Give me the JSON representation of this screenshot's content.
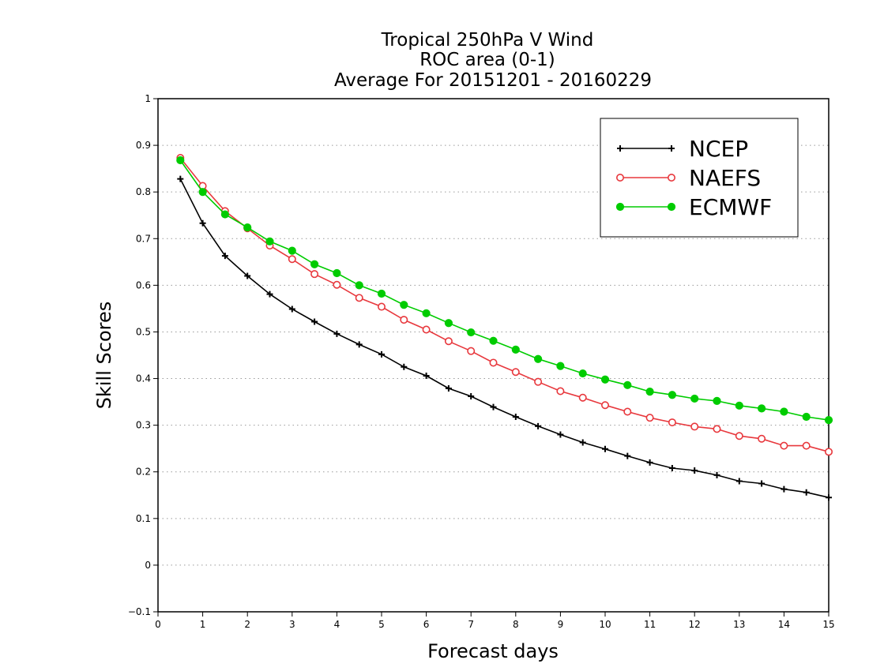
{
  "chart_data": {
    "type": "line",
    "title_lines": [
      "Tropical 250hPa V Wind",
      "ROC area (0-1)",
      "Average For 20151201 - 20160229"
    ],
    "xlabel": "Forecast days",
    "ylabel": "Skill Scores",
    "xlim": [
      0,
      15
    ],
    "ylim": [
      -0.1,
      1
    ],
    "xticks": [
      0,
      1,
      2,
      3,
      4,
      5,
      6,
      7,
      8,
      9,
      10,
      11,
      12,
      13,
      14,
      15
    ],
    "yticks": [
      -0.1,
      0,
      0.1,
      0.2,
      0.3,
      0.4,
      0.5,
      0.6,
      0.7,
      0.8,
      0.9,
      1
    ],
    "grid": "dotted horizontal",
    "legend_position": "top-right",
    "x": [
      0.5,
      1,
      1.5,
      2,
      2.5,
      3,
      3.5,
      4,
      4.5,
      5,
      5.5,
      6,
      6.5,
      7,
      7.5,
      8,
      8.5,
      9,
      9.5,
      10,
      10.5,
      11,
      11.5,
      12,
      12.5,
      13,
      13.5,
      14,
      14.5,
      15
    ],
    "series": [
      {
        "name": "NCEP",
        "color": "#000000",
        "marker": "plus",
        "values": [
          0.828,
          0.733,
          0.663,
          0.62,
          0.581,
          0.549,
          0.522,
          0.496,
          0.473,
          0.452,
          0.425,
          0.406,
          0.379,
          0.362,
          0.339,
          0.318,
          0.298,
          0.28,
          0.263,
          0.249,
          0.234,
          0.22,
          0.208,
          0.203,
          0.193,
          0.18,
          0.175,
          0.163,
          0.156,
          0.145
        ]
      },
      {
        "name": "NAEFS",
        "color": "#e8383d",
        "marker": "open-circle",
        "values": [
          0.873,
          0.813,
          0.759,
          0.722,
          0.685,
          0.656,
          0.624,
          0.601,
          0.573,
          0.554,
          0.526,
          0.505,
          0.48,
          0.459,
          0.434,
          0.414,
          0.393,
          0.373,
          0.359,
          0.343,
          0.329,
          0.316,
          0.306,
          0.297,
          0.292,
          0.277,
          0.271,
          0.256,
          0.256,
          0.243
        ]
      },
      {
        "name": "ECMWF",
        "color": "#00cc00",
        "marker": "filled-circle",
        "values": [
          0.868,
          0.8,
          0.752,
          0.724,
          0.694,
          0.674,
          0.645,
          0.626,
          0.6,
          0.582,
          0.558,
          0.54,
          0.519,
          0.499,
          0.481,
          0.462,
          0.442,
          0.427,
          0.411,
          0.398,
          0.386,
          0.372,
          0.365,
          0.357,
          0.352,
          0.342,
          0.336,
          0.329,
          0.318,
          0.311
        ]
      }
    ]
  }
}
